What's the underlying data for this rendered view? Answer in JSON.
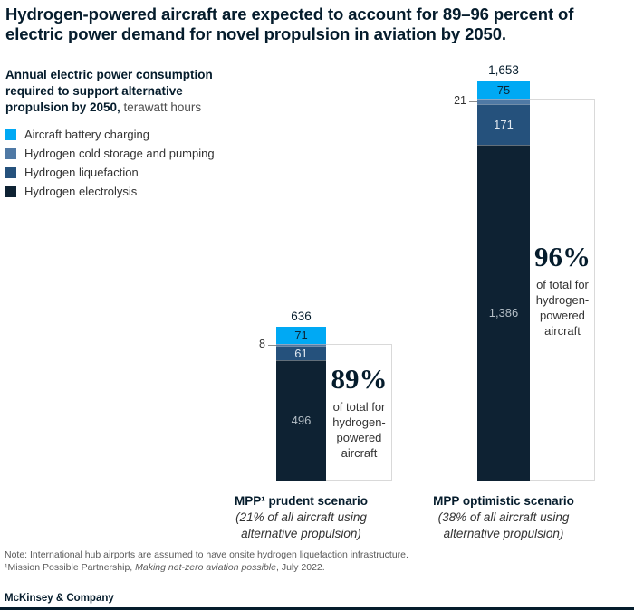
{
  "title": "Hydrogen-powered aircraft are expected to account for 89–96 percent of electric power demand for novel propulsion in aviation by 2050.",
  "subtitle": {
    "bold": "Annual electric power consumption required to support alternative propulsion by 2050,",
    "unit": "terawatt hours"
  },
  "legend": [
    {
      "label": "Aircraft battery charging",
      "color": "#00a9f4"
    },
    {
      "label": "Hydrogen cold storage and pumping",
      "color": "#4f79a5"
    },
    {
      "label": "Hydrogen liquefaction",
      "color": "#25517c"
    },
    {
      "label": "Hydrogen electrolysis",
      "color": "#0e2233"
    }
  ],
  "chart_data": {
    "type": "bar",
    "stacked": true,
    "title": "Annual electric power consumption required to support alternative propulsion by 2050",
    "unit": "terawatt hours",
    "ylim": [
      0,
      1653
    ],
    "grid": false,
    "categories": [
      "Aircraft battery charging",
      "Hydrogen cold storage and pumping",
      "Hydrogen liquefaction",
      "Hydrogen electrolysis"
    ],
    "colors": [
      "#00a9f4",
      "#4f79a5",
      "#25517c",
      "#0e2233"
    ],
    "bars": [
      {
        "label": "MPP¹ prudent scenario",
        "sublabel": "(21% of all aircraft using alternative propulsion)",
        "total": 636,
        "total_label": "636",
        "segments": [
          {
            "category": "Aircraft battery charging",
            "value": 71,
            "label": "71",
            "label_position": "inside"
          },
          {
            "category": "Hydrogen cold storage and pumping",
            "value": 8,
            "label": "8",
            "label_position": "outside-left"
          },
          {
            "category": "Hydrogen liquefaction",
            "value": 61,
            "label": "61",
            "label_position": "inside"
          },
          {
            "category": "Hydrogen electrolysis",
            "value": 496,
            "label": "496",
            "label_position": "inside"
          }
        ],
        "callout": {
          "percent": "89%",
          "caption_lines": [
            "of total for",
            "hydrogen-",
            "powered",
            "aircraft"
          ]
        }
      },
      {
        "label": "MPP optimistic scenario",
        "sublabel": "(38% of all aircraft using alternative propulsion)",
        "total": 1653,
        "total_label": "1,653",
        "segments": [
          {
            "category": "Aircraft battery charging",
            "value": 75,
            "label": "75",
            "label_position": "inside"
          },
          {
            "category": "Hydrogen cold storage and pumping",
            "value": 21,
            "label": "21",
            "label_position": "outside-left"
          },
          {
            "category": "Hydrogen liquefaction",
            "value": 171,
            "label": "171",
            "label_position": "inside"
          },
          {
            "category": "Hydrogen electrolysis",
            "value": 1386,
            "label": "1,386",
            "label_position": "inside"
          }
        ],
        "callout": {
          "percent": "96%",
          "caption_lines": [
            "of total for",
            "hydrogen-",
            "powered",
            "aircraft"
          ]
        }
      }
    ]
  },
  "footnotes": {
    "note": "Note: International hub airports are assumed to have onsite hydrogen liquefaction infrastructure.",
    "source_prefix": "¹Mission Possible Partnership, ",
    "source_italic": "Making net-zero aviation possible",
    "source_suffix": ", July 2022."
  },
  "logo": "McKinsey & Company"
}
